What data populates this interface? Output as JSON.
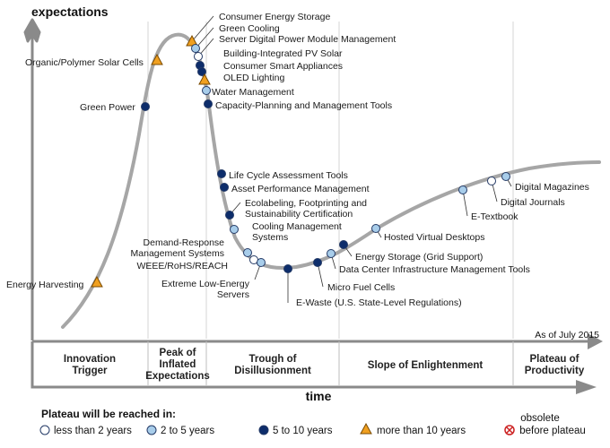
{
  "chart_data": {
    "type": "scatter",
    "title": "",
    "ylabel": "expectations",
    "xlabel": "time",
    "as_of": "As of July 2015",
    "phases": [
      {
        "lines": [
          "Innovation",
          "Trigger"
        ]
      },
      {
        "lines": [
          "Peak of",
          "Inflated",
          "Expectations"
        ]
      },
      {
        "lines": [
          "Trough of",
          "Disillusionment"
        ]
      },
      {
        "lines": [
          "Slope of Enlightenment"
        ]
      },
      {
        "lines": [
          "Plateau of",
          "Productivity"
        ]
      }
    ],
    "legend": {
      "title": "Plateau will be reached in:",
      "items": [
        {
          "key": "lt2",
          "label": "less than 2 years",
          "color": "#ffffff",
          "shape": "circle"
        },
        {
          "key": "2to5",
          "label": "2 to 5 years",
          "color": "#a8cdea",
          "shape": "circle"
        },
        {
          "key": "5to10",
          "label": "5 to 10 years",
          "color": "#0d2d6b",
          "shape": "circle"
        },
        {
          "key": "gt10",
          "label": "more than 10 years",
          "color": "#f0a020",
          "shape": "triangle"
        },
        {
          "key": "obs",
          "label_lines": [
            "obsolete",
            "before plateau"
          ],
          "color": "#cc2222",
          "shape": "obsolete"
        }
      ]
    },
    "points": [
      {
        "label": "Energy Harvesting",
        "cat": "gt10"
      },
      {
        "label": "Green Power",
        "cat": "5to10"
      },
      {
        "label": "Organic/Polymer Solar Cells",
        "cat": "gt10"
      },
      {
        "label": "Consumer Energy Storage",
        "cat": "gt10"
      },
      {
        "label": "Green Cooling",
        "cat": "2to5"
      },
      {
        "label": "Server Digital Power Module Management",
        "cat": "lt2"
      },
      {
        "label": "Building-Integrated PV Solar",
        "cat": "5to10"
      },
      {
        "label": "Consumer Smart Appliances",
        "cat": "5to10"
      },
      {
        "label": "OLED Lighting",
        "cat": "gt10"
      },
      {
        "label": "Water Management",
        "cat": "2to5"
      },
      {
        "label": "Capacity-Planning and Management Tools",
        "cat": "5to10"
      },
      {
        "label": "Life Cycle Assessment Tools",
        "cat": "5to10"
      },
      {
        "label": "Asset Performance Management",
        "cat": "5to10"
      },
      {
        "label": "Ecolabeling, Footprinting and Sustainability Certification",
        "cat": "5to10"
      },
      {
        "label": "Cooling Management Systems",
        "cat": "2to5"
      },
      {
        "label": "Demand-Response Management Systems",
        "cat": "2to5"
      },
      {
        "label": "WEEE/RoHS/REACH",
        "cat": "lt2"
      },
      {
        "label": "Extreme Low-Energy Servers",
        "cat": "2to5"
      },
      {
        "label": "E-Waste (U.S. State-Level Regulations)",
        "cat": "5to10"
      },
      {
        "label": "Micro Fuel Cells",
        "cat": "5to10"
      },
      {
        "label": "Data Center Infrastructure Management Tools",
        "cat": "2to5"
      },
      {
        "label": "Energy Storage (Grid Support)",
        "cat": "5to10"
      },
      {
        "label": "Hosted Virtual Desktops",
        "cat": "2to5"
      },
      {
        "label": "E-Textbook",
        "cat": "2to5"
      },
      {
        "label": "Digital Journals",
        "cat": "lt2"
      },
      {
        "label": "Digital Magazines",
        "cat": "2to5"
      }
    ]
  }
}
